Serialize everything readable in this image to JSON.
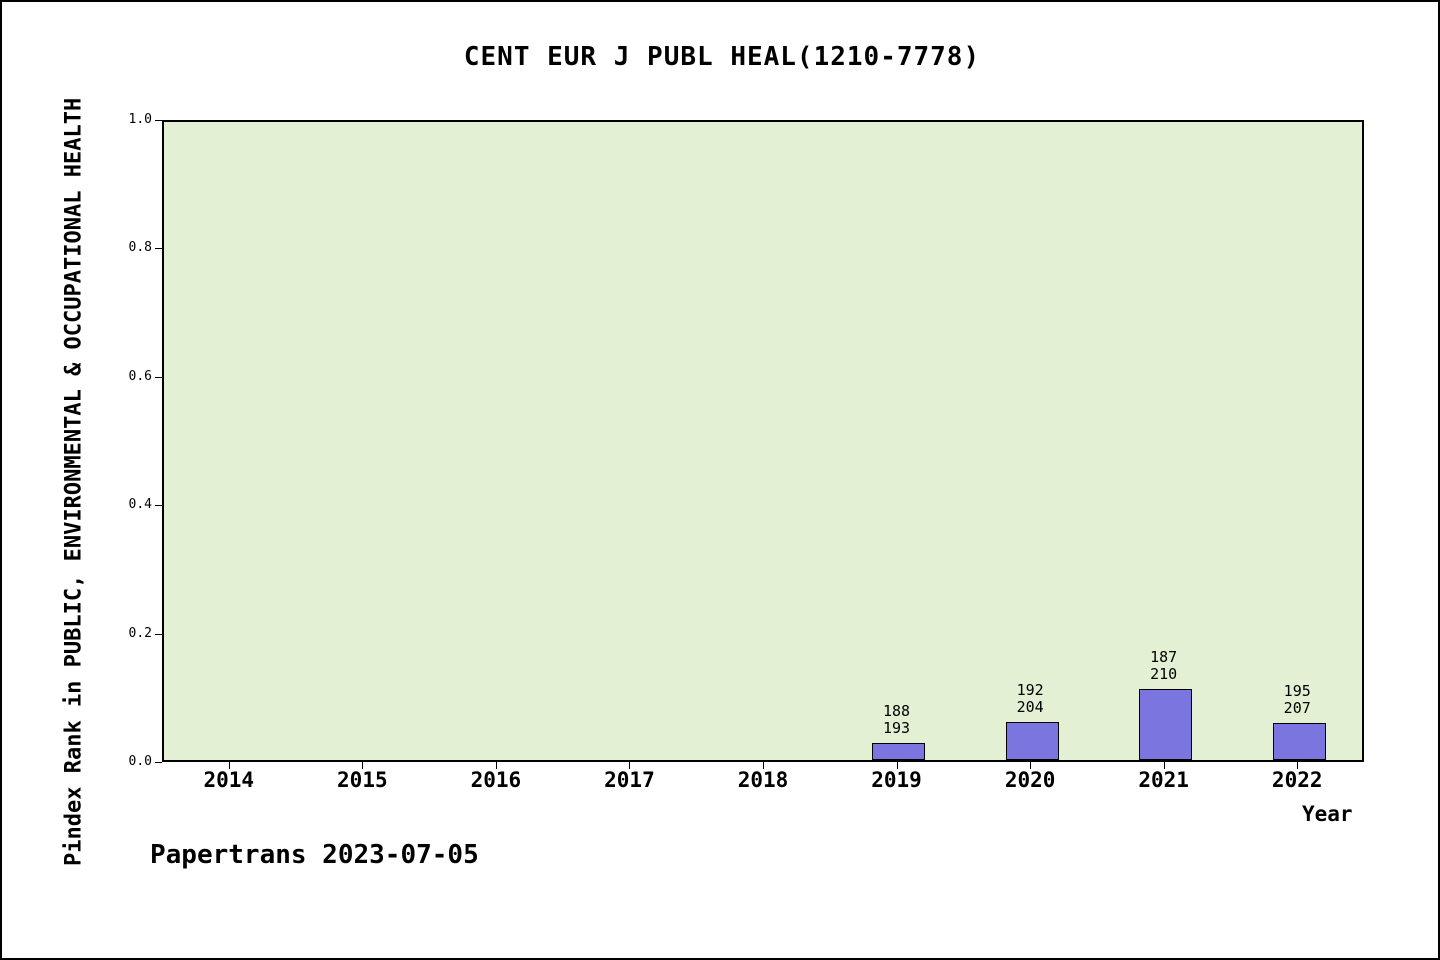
{
  "title": "CENT EUR J PUBL HEAL(1210-7778)",
  "footer": "Papertrans 2023-07-05",
  "chart_data": {
    "type": "bar",
    "title": "CENT EUR J PUBL HEAL(1210-7778)",
    "xlabel": "Year",
    "ylabel": "Pindex Rank in PUBLIC, ENVIRONMENTAL & OCCUPATIONAL HEALTH",
    "categories": [
      "2014",
      "2015",
      "2016",
      "2017",
      "2018",
      "2019",
      "2020",
      "2021",
      "2022"
    ],
    "values": [
      null,
      null,
      null,
      null,
      null,
      0.026,
      0.059,
      0.11,
      0.058
    ],
    "bar_labels": [
      null,
      null,
      null,
      null,
      null,
      "188\n193",
      "192\n204",
      "187\n210",
      "195\n207"
    ],
    "ylim": [
      0.0,
      1.0
    ],
    "yticks": [
      "0.0",
      "0.2",
      "0.4",
      "0.6",
      "0.8",
      "1.0"
    ],
    "grid": false,
    "legend": "none",
    "colors": {
      "bar_fill": "#7b75e0",
      "bar_border": "#000000",
      "plot_bg": "#e3f0d3"
    }
  }
}
